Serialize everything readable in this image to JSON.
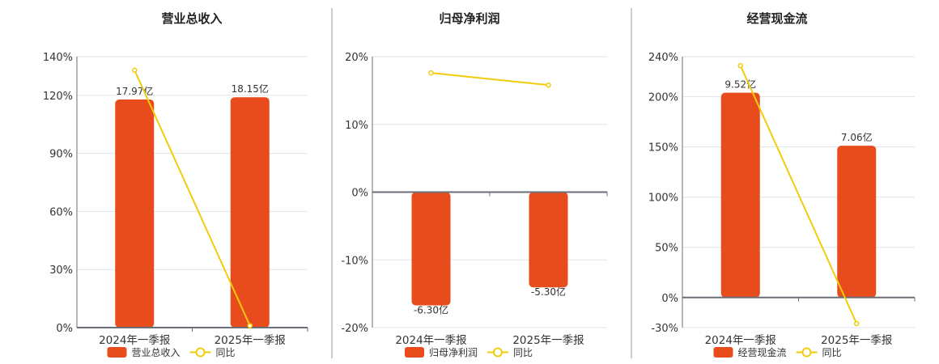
{
  "colors": {
    "bar": "#e84c1c",
    "line": "#f2cc0c",
    "grid": "#dde3ee",
    "axis": "#6b6e78",
    "divider": "#999999"
  },
  "chart_data": [
    {
      "type": "bar+line",
      "title": "营业总收入",
      "categories": [
        "2024年一季报",
        "2025年一季报"
      ],
      "bar_series": {
        "name": "营业总收入",
        "values": [
          17.97,
          18.15
        ],
        "labels": [
          "17.97亿",
          "18.15亿"
        ],
        "unit": "亿"
      },
      "line_series": {
        "name": "同比",
        "values": [
          133,
          1
        ]
      },
      "yticks": [
        0,
        30,
        60,
        90,
        120,
        140
      ],
      "ytick_labels": [
        "0%",
        "30%",
        "60%",
        "90%",
        "120%",
        "140%"
      ],
      "ylim": [
        0,
        140
      ],
      "bar_max": 21.35,
      "legend": "bottom"
    },
    {
      "type": "bar+line",
      "title": "归母净利润",
      "categories": [
        "2024年一季报",
        "2025年一季报"
      ],
      "bar_series": {
        "name": "归母净利润",
        "values": [
          -6.3,
          -5.3
        ],
        "labels": [
          "-6.30亿",
          "-5.30亿"
        ],
        "unit": "亿"
      },
      "line_series": {
        "name": "同比",
        "values": [
          17.6,
          15.8
        ]
      },
      "yticks": [
        -20,
        -10,
        0,
        10,
        20
      ],
      "ytick_labels": [
        "-20%",
        "-10%",
        "0%",
        "10%",
        "20%"
      ],
      "ylim": [
        -20,
        20
      ],
      "bar_max": 7.54,
      "legend": "bottom"
    },
    {
      "type": "bar+line",
      "title": "经营现金流",
      "categories": [
        "2024年一季报",
        "2025年一季报"
      ],
      "bar_series": {
        "name": "经营现金流",
        "values": [
          9.52,
          7.06
        ],
        "labels": [
          "9.52亿",
          "7.06亿"
        ],
        "unit": "亿"
      },
      "line_series": {
        "name": "同比",
        "values": [
          231,
          -26
        ]
      },
      "yticks": [
        -30,
        0,
        50,
        100,
        150,
        200,
        240
      ],
      "ytick_labels": [
        "-30%",
        "0%",
        "50%",
        "100%",
        "150%",
        "200%",
        "240%"
      ],
      "ylim": [
        -30,
        240
      ],
      "bar_max": 11.2,
      "legend": "bottom"
    }
  ]
}
